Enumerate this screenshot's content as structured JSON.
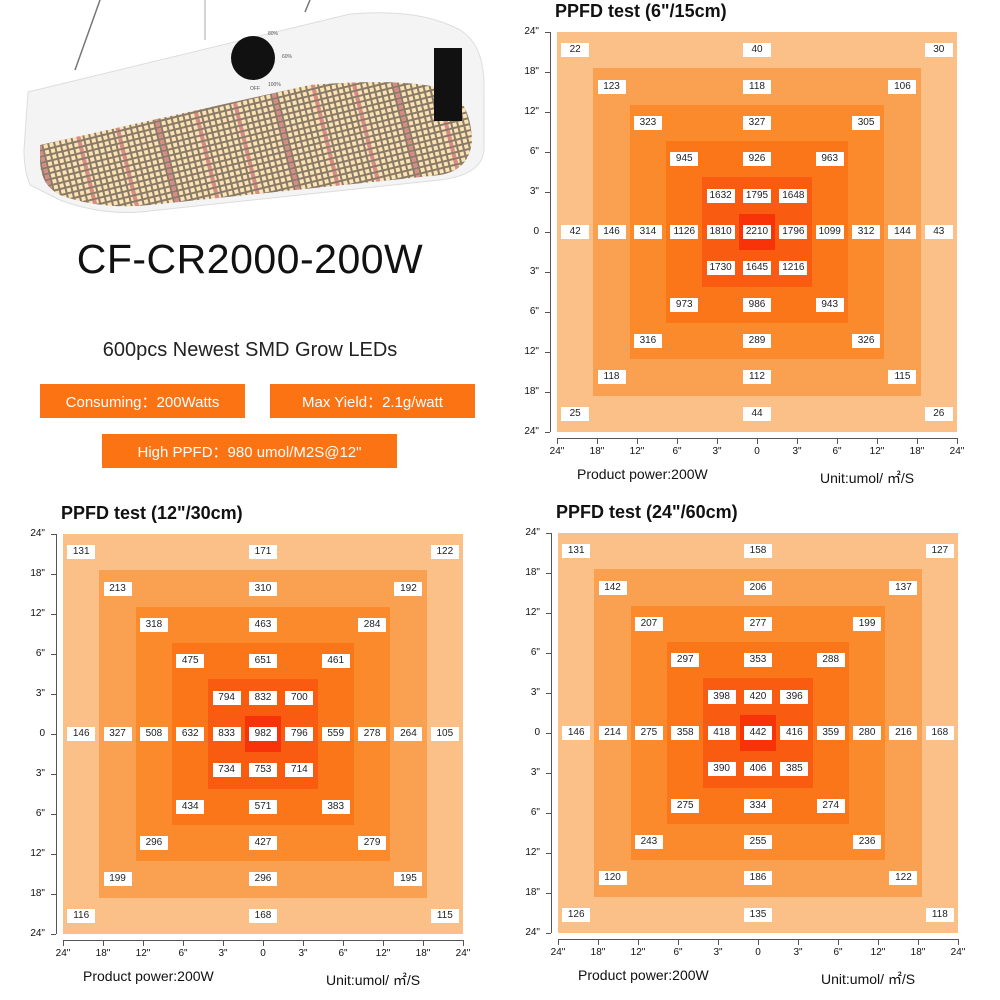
{
  "product": {
    "model": "CF-CR2000-200W",
    "subtitle": "600pcs Newest SMD Grow LEDs",
    "badges": [
      "Consuming：200Watts",
      "Max Yield：2.1g/watt",
      "High PPFD：980 umol/M2S@12\""
    ],
    "dial_labels": [
      "OFF",
      "60%",
      "80%",
      "100%"
    ],
    "accent_color": "#fb7313"
  },
  "ring_colors": [
    "#fbc088",
    "#f9a150",
    "#fa8a2c",
    "#fb7618",
    "#f95c10",
    "#f8330a"
  ],
  "chart_data": [
    {
      "type": "heatmap",
      "title": "PPFD test (6\"/15cm)",
      "footer_left": "Product power:200W",
      "footer_right": "Unit:umol/ ㎡/S",
      "y_ticks": [
        "24\"",
        "18\"",
        "12\"",
        "6\"",
        "3\"",
        "0",
        "3\"",
        "6\"",
        "12\"",
        "18\"",
        "24\""
      ],
      "x_ticks": [
        "24\"",
        "18\"",
        "12\"",
        "6\"",
        "3\"",
        "0",
        "3\"",
        "6\"",
        "12\"",
        "18\"",
        "24\""
      ],
      "values": [
        [
          22,
          null,
          null,
          null,
          null,
          40,
          null,
          null,
          null,
          null,
          30
        ],
        [
          null,
          123,
          null,
          null,
          null,
          118,
          null,
          null,
          null,
          106,
          null
        ],
        [
          null,
          null,
          323,
          null,
          null,
          327,
          null,
          null,
          305,
          null,
          null
        ],
        [
          null,
          null,
          null,
          945,
          null,
          926,
          null,
          963,
          null,
          null,
          null
        ],
        [
          null,
          null,
          null,
          null,
          1632,
          1795,
          1648,
          null,
          null,
          null,
          null
        ],
        [
          42,
          146,
          314,
          1126,
          1810,
          2210,
          1796,
          1099,
          312,
          144,
          43
        ],
        [
          null,
          null,
          null,
          null,
          1730,
          1645,
          1216,
          null,
          null,
          null,
          null
        ],
        [
          null,
          null,
          null,
          973,
          null,
          986,
          null,
          943,
          null,
          null,
          null
        ],
        [
          null,
          null,
          316,
          null,
          null,
          289,
          null,
          null,
          326,
          null,
          null
        ],
        [
          null,
          118,
          null,
          null,
          null,
          112,
          null,
          null,
          null,
          115,
          null
        ],
        [
          25,
          null,
          null,
          null,
          null,
          44,
          null,
          null,
          null,
          null,
          26
        ]
      ]
    },
    {
      "type": "heatmap",
      "title": "PPFD test (12\"/30cm)",
      "footer_left": "Product power:200W",
      "footer_right": "Unit:umol/ ㎡/S",
      "y_ticks": [
        "24\"",
        "18\"",
        "12\"",
        "6\"",
        "3\"",
        "0",
        "3\"",
        "6\"",
        "12\"",
        "18\"",
        "24\""
      ],
      "x_ticks": [
        "24\"",
        "18\"",
        "12\"",
        "6\"",
        "3\"",
        "0",
        "3\"",
        "6\"",
        "12\"",
        "18\"",
        "24\""
      ],
      "values": [
        [
          131,
          null,
          null,
          null,
          null,
          171,
          null,
          null,
          null,
          null,
          122
        ],
        [
          null,
          213,
          null,
          null,
          null,
          310,
          null,
          null,
          null,
          192,
          null
        ],
        [
          null,
          null,
          318,
          null,
          null,
          463,
          null,
          null,
          284,
          null,
          null
        ],
        [
          null,
          null,
          null,
          475,
          null,
          651,
          null,
          461,
          null,
          null,
          null
        ],
        [
          null,
          null,
          null,
          null,
          794,
          832,
          700,
          null,
          null,
          null,
          null
        ],
        [
          146,
          327,
          508,
          632,
          833,
          982,
          796,
          559,
          278,
          264,
          105
        ],
        [
          null,
          null,
          null,
          null,
          734,
          753,
          714,
          null,
          null,
          null,
          null
        ],
        [
          null,
          null,
          null,
          434,
          null,
          571,
          null,
          383,
          null,
          null,
          null
        ],
        [
          null,
          null,
          296,
          null,
          null,
          427,
          null,
          null,
          279,
          null,
          null
        ],
        [
          null,
          199,
          null,
          null,
          null,
          296,
          null,
          null,
          null,
          195,
          null
        ],
        [
          116,
          null,
          null,
          null,
          null,
          168,
          null,
          null,
          null,
          null,
          115
        ]
      ]
    },
    {
      "type": "heatmap",
      "title": "PPFD test (24\"/60cm)",
      "footer_left": "Product power:200W",
      "footer_right": "Unit:umol/ ㎡/S",
      "y_ticks": [
        "24\"",
        "18\"",
        "12\"",
        "6\"",
        "3\"",
        "0",
        "3\"",
        "6\"",
        "12\"",
        "18\"",
        "24\""
      ],
      "x_ticks": [
        "24\"",
        "18\"",
        "12\"",
        "6\"",
        "3\"",
        "0",
        "3\"",
        "6\"",
        "12\"",
        "18\"",
        "24\""
      ],
      "values": [
        [
          131,
          null,
          null,
          null,
          null,
          158,
          null,
          null,
          null,
          null,
          127
        ],
        [
          null,
          142,
          null,
          null,
          null,
          206,
          null,
          null,
          null,
          137,
          null
        ],
        [
          null,
          null,
          207,
          null,
          null,
          277,
          null,
          null,
          199,
          null,
          null
        ],
        [
          null,
          null,
          null,
          297,
          null,
          353,
          null,
          288,
          null,
          null,
          null
        ],
        [
          null,
          null,
          null,
          null,
          398,
          420,
          396,
          null,
          null,
          null,
          null
        ],
        [
          146,
          214,
          275,
          358,
          418,
          442,
          416,
          359,
          280,
          216,
          168
        ],
        [
          null,
          null,
          null,
          null,
          390,
          406,
          385,
          null,
          null,
          null,
          null
        ],
        [
          null,
          null,
          null,
          275,
          null,
          334,
          null,
          274,
          null,
          null,
          null
        ],
        [
          null,
          null,
          243,
          null,
          null,
          255,
          null,
          null,
          236,
          null,
          null
        ],
        [
          null,
          120,
          null,
          null,
          null,
          186,
          null,
          null,
          null,
          122,
          null
        ],
        [
          126,
          null,
          null,
          null,
          null,
          135,
          null,
          null,
          null,
          null,
          118
        ]
      ]
    }
  ]
}
